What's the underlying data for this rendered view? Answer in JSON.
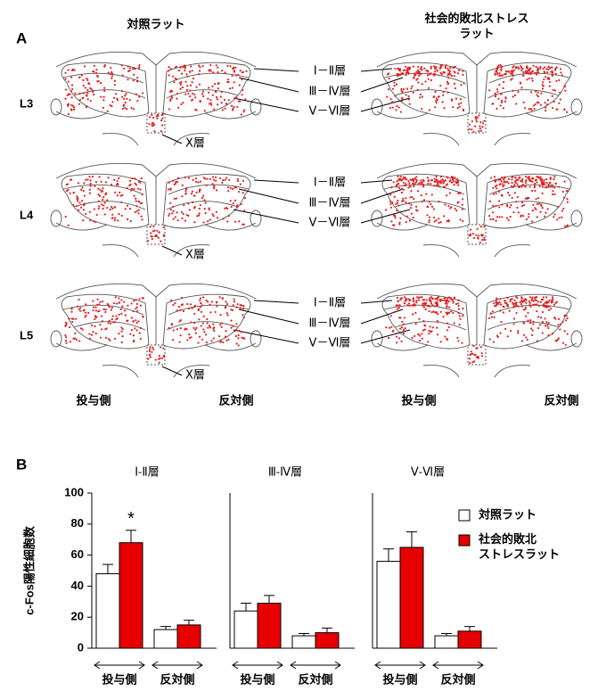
{
  "panel_a": {
    "label": "A",
    "columns": [
      "対照ラット",
      "社会的敗北ストレス\nラット"
    ],
    "rows": [
      "L3",
      "L4",
      "L5"
    ],
    "layers": [
      "Ⅰ－Ⅱ層",
      "Ⅲ－Ⅳ層",
      "Ⅴ－Ⅵ層"
    ],
    "x_layer": "Ⅹ層",
    "sides": [
      "投与側",
      "反対側"
    ]
  },
  "panel_b": {
    "label": "B"
  },
  "chart_data": [
    {
      "type": "bar",
      "title": "Ⅰ-Ⅱ層",
      "ylabel": "c-Fos陽性細胞数",
      "categories": [
        "投与側",
        "反対側"
      ],
      "series": [
        {
          "name": "対照ラット",
          "color": "#ffffff",
          "values": [
            48,
            12
          ],
          "errors": [
            6,
            2
          ]
        },
        {
          "name": "社会的敗北\nストレスラット",
          "color": "#e60000",
          "values": [
            68,
            15
          ],
          "errors": [
            8,
            3
          ]
        }
      ],
      "annotation": "*",
      "ylim": [
        0,
        100
      ],
      "yticks": [
        0,
        20,
        40,
        60,
        80,
        100
      ]
    },
    {
      "type": "bar",
      "title": "Ⅲ-Ⅳ層",
      "categories": [
        "投与側",
        "反対側"
      ],
      "series": [
        {
          "color": "#ffffff",
          "values": [
            24,
            8
          ],
          "errors": [
            5,
            1.5
          ]
        },
        {
          "color": "#e60000",
          "values": [
            29,
            10
          ],
          "errors": [
            5,
            3
          ]
        }
      ],
      "ylim": [
        0,
        100
      ]
    },
    {
      "type": "bar",
      "title": "Ⅴ-Ⅵ層",
      "categories": [
        "投与側",
        "反対側"
      ],
      "series": [
        {
          "color": "#ffffff",
          "values": [
            56,
            8
          ],
          "errors": [
            8,
            1.5
          ]
        },
        {
          "color": "#e60000",
          "values": [
            65,
            11
          ],
          "errors": [
            10,
            3
          ]
        }
      ],
      "ylim": [
        0,
        100
      ]
    }
  ]
}
